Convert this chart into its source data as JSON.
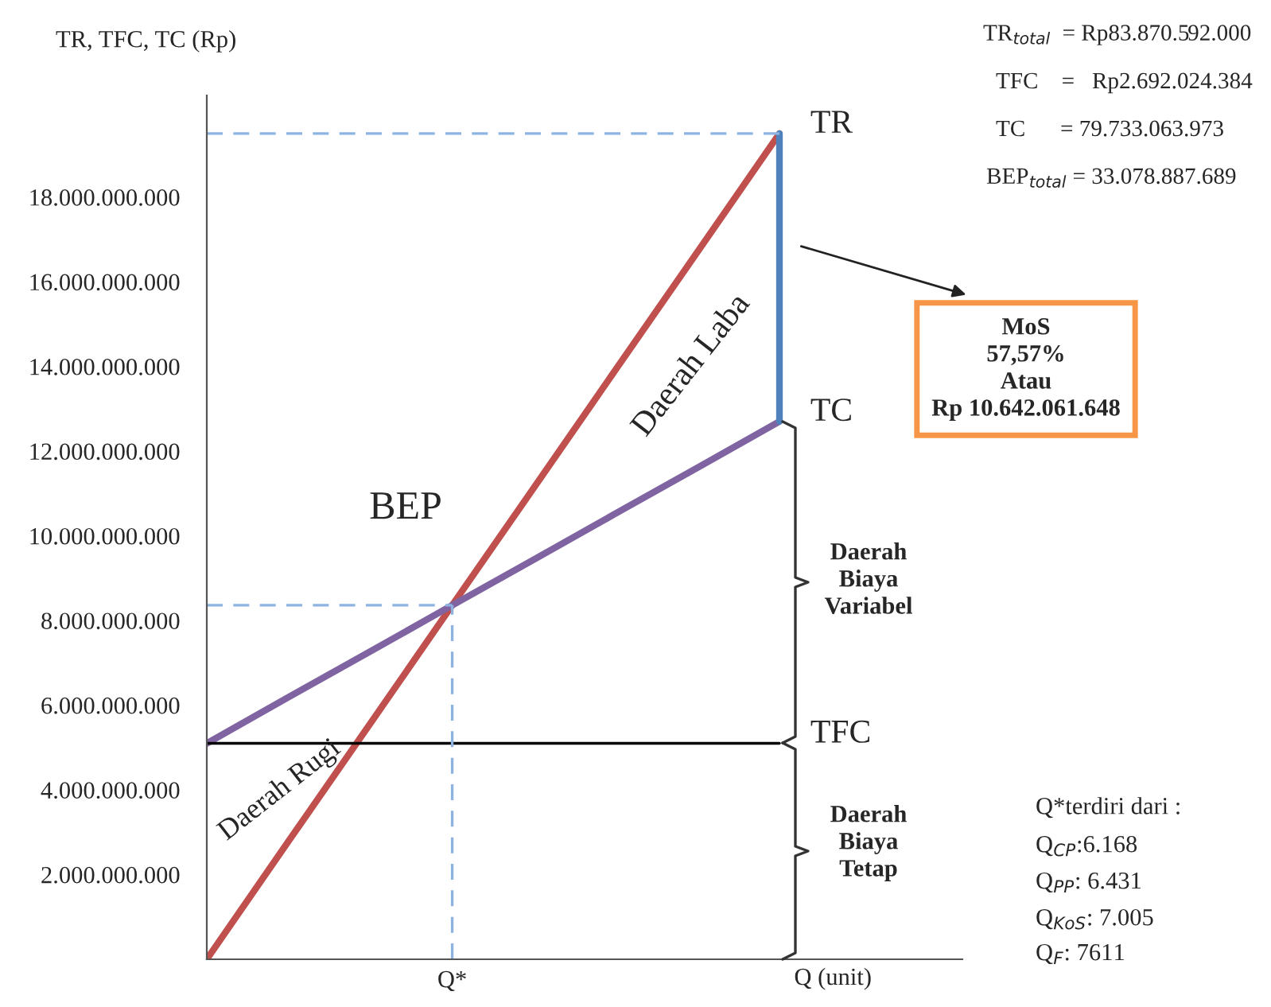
{
  "chart_data": {
    "type": "line",
    "ylabel": "TR, TFC, TC (Rp)",
    "xlabel": "Q (unit)",
    "categories": [
      null,
      null,
      null,
      null,
      null,
      null,
      null,
      null
    ],
    "ylim": [
      0,
      20400000000
    ],
    "yticks": [
      {
        "value": 2000000000,
        "label": "2.000.000.000"
      },
      {
        "value": 4000000000,
        "label": "4.000.000.000"
      },
      {
        "value": 6000000000,
        "label": "6.000.000.000"
      },
      {
        "value": 8000000000,
        "label": "8.000.000.000"
      },
      {
        "value": 10000000000,
        "label": "10.000.000.000"
      },
      {
        "value": 12000000000,
        "label": "12.000.000.000"
      },
      {
        "value": 14000000000,
        "label": "14.000.000.000"
      },
      {
        "value": 16000000000,
        "label": "16.000.000.000"
      },
      {
        "value": 18000000000,
        "label": "18.000.000.000"
      }
    ],
    "grid": false,
    "legend": false,
    "ref_lines": [
      {
        "axis": "y",
        "value": 19500000000,
        "color": "#8db3e2",
        "line_style": "dashed"
      },
      {
        "axis": "y",
        "value": 8360000000,
        "color": "#8db3e2",
        "line_style": "dashed"
      }
    ],
    "series": [
      {
        "name": "TR",
        "color": "#c0504d",
        "values": [
          0,
          2790000000,
          5570000000,
          8360000000,
          11140000000,
          13930000000,
          16710000000,
          19500000000
        ]
      },
      {
        "name": "TC",
        "color": "#8064a2",
        "values": [
          5100000000,
          6190000000,
          7270000000,
          8360000000,
          9440000000,
          10530000000,
          11610000000,
          12700000000
        ]
      },
      {
        "name": "TFC",
        "color": "#000000",
        "values": [
          5100000000,
          5100000000,
          5100000000,
          5100000000,
          5100000000,
          5100000000,
          5100000000,
          5100000000
        ]
      }
    ],
    "annotations": [
      "Q*",
      "BEP",
      "Daerah Laba",
      "Daerah Rugi",
      "Daerah\nBiaya\nVariabel",
      "Daerah\nBiaya\nTetap",
      "MoS\n57,57%\nAtau\nRp 10.642.061.648",
      "TR$_{total}$  = Rp83.870.592.000",
      "TFC    =   Rp2.692.024.384",
      "TC      = 79.733.063.973",
      "BEP$_{total}$ = 33.078.887.689",
      "Q*terdiri dari :",
      "Q$_{CP}$:6.168",
      "Q$_{PP}$: 6.431",
      "Q$_{KoS}$: 7.005",
      "Q$_{F}$: 7611"
    ]
  }
}
